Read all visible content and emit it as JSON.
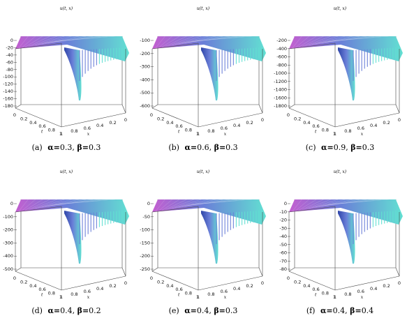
{
  "figure": {
    "panels": [
      {
        "tag": "(a)",
        "alpha": "0.3",
        "beta": "0.3",
        "title": "u(t, x)",
        "z_ticks": [
          "0",
          "-20",
          "-40",
          "-60",
          "-80",
          "-100",
          "-120",
          "-140",
          "-160",
          "-180"
        ],
        "t_ticks": [
          "0",
          "0.2",
          "0.4",
          "0.6",
          "0.8",
          "1"
        ],
        "x_ticks": [
          "1",
          "0.8",
          "0.6",
          "0.4",
          "0.2",
          "0"
        ],
        "t_label": "t",
        "x_label": "x"
      },
      {
        "tag": "(b)",
        "alpha": "0.6",
        "beta": "0.3",
        "title": "u(t, x)",
        "z_ticks": [
          "-100",
          "-200",
          "-300",
          "-400",
          "-500",
          "-600"
        ],
        "t_ticks": [
          "0",
          "0.2",
          "0.4",
          "0.6",
          "0.8",
          "1"
        ],
        "x_ticks": [
          "1",
          "0.8",
          "0.6",
          "0.4",
          "0.2",
          "0"
        ],
        "t_label": "t",
        "x_label": "x"
      },
      {
        "tag": "(c)",
        "alpha": "0.9",
        "beta": "0.3",
        "title": "u(t, x)",
        "z_ticks": [
          "-200",
          "-400",
          "-600",
          "-800",
          "-1000",
          "-1200",
          "-1400",
          "-1600",
          "-1800"
        ],
        "t_ticks": [
          "0",
          "0.2",
          "0.4",
          "0.6",
          "0.8",
          "1"
        ],
        "x_ticks": [
          "1",
          "0.8",
          "0.6",
          "0.4",
          "0.2",
          "0"
        ],
        "t_label": "t",
        "x_label": "x"
      },
      {
        "tag": "(d)",
        "alpha": "0.4",
        "beta": "0.2",
        "title": "u(t, x)",
        "z_ticks": [
          "0",
          "-100",
          "-200",
          "-300",
          "-400",
          "-500"
        ],
        "t_ticks": [
          "0",
          "0.2",
          "0.4",
          "0.6",
          "0.8",
          "1"
        ],
        "x_ticks": [
          "1",
          "0.8",
          "0.6",
          "0.4",
          "0.2",
          "0"
        ],
        "t_label": "t",
        "x_label": "x"
      },
      {
        "tag": "(e)",
        "alpha": "0.4",
        "beta": "0.3",
        "title": "u(t, x)",
        "z_ticks": [
          "0",
          "-50",
          "-100",
          "-150",
          "-200",
          "-250"
        ],
        "t_ticks": [
          "0",
          "0.2",
          "0.4",
          "0.6",
          "0.8",
          "1"
        ],
        "x_ticks": [
          "1",
          "0.8",
          "0.6",
          "0.4",
          "0.2",
          "0"
        ],
        "t_label": "t",
        "x_label": "x"
      },
      {
        "tag": "(f)",
        "alpha": "0.4",
        "beta": "0.4",
        "title": "u(t, x)",
        "z_ticks": [
          "0",
          "-10",
          "-20",
          "-30",
          "-40",
          "-50",
          "-60",
          "-70",
          "-80"
        ],
        "t_ticks": [
          "0",
          "0.2",
          "0.4",
          "0.6",
          "0.8",
          "1"
        ],
        "x_ticks": [
          "1",
          "0.8",
          "0.6",
          "0.4",
          "0.2",
          "0"
        ],
        "t_label": "t",
        "x_label": "x"
      }
    ],
    "alpha_symbol": "α=",
    "beta_symbol": "β=",
    "caption_separator": ", "
  },
  "colors": {
    "surface_top": "#c45fd0",
    "surface_mid": "#6a7fd8",
    "surface_low": "#2f45a8",
    "surface_edge": "#62e0d2",
    "frame": "#444444"
  }
}
